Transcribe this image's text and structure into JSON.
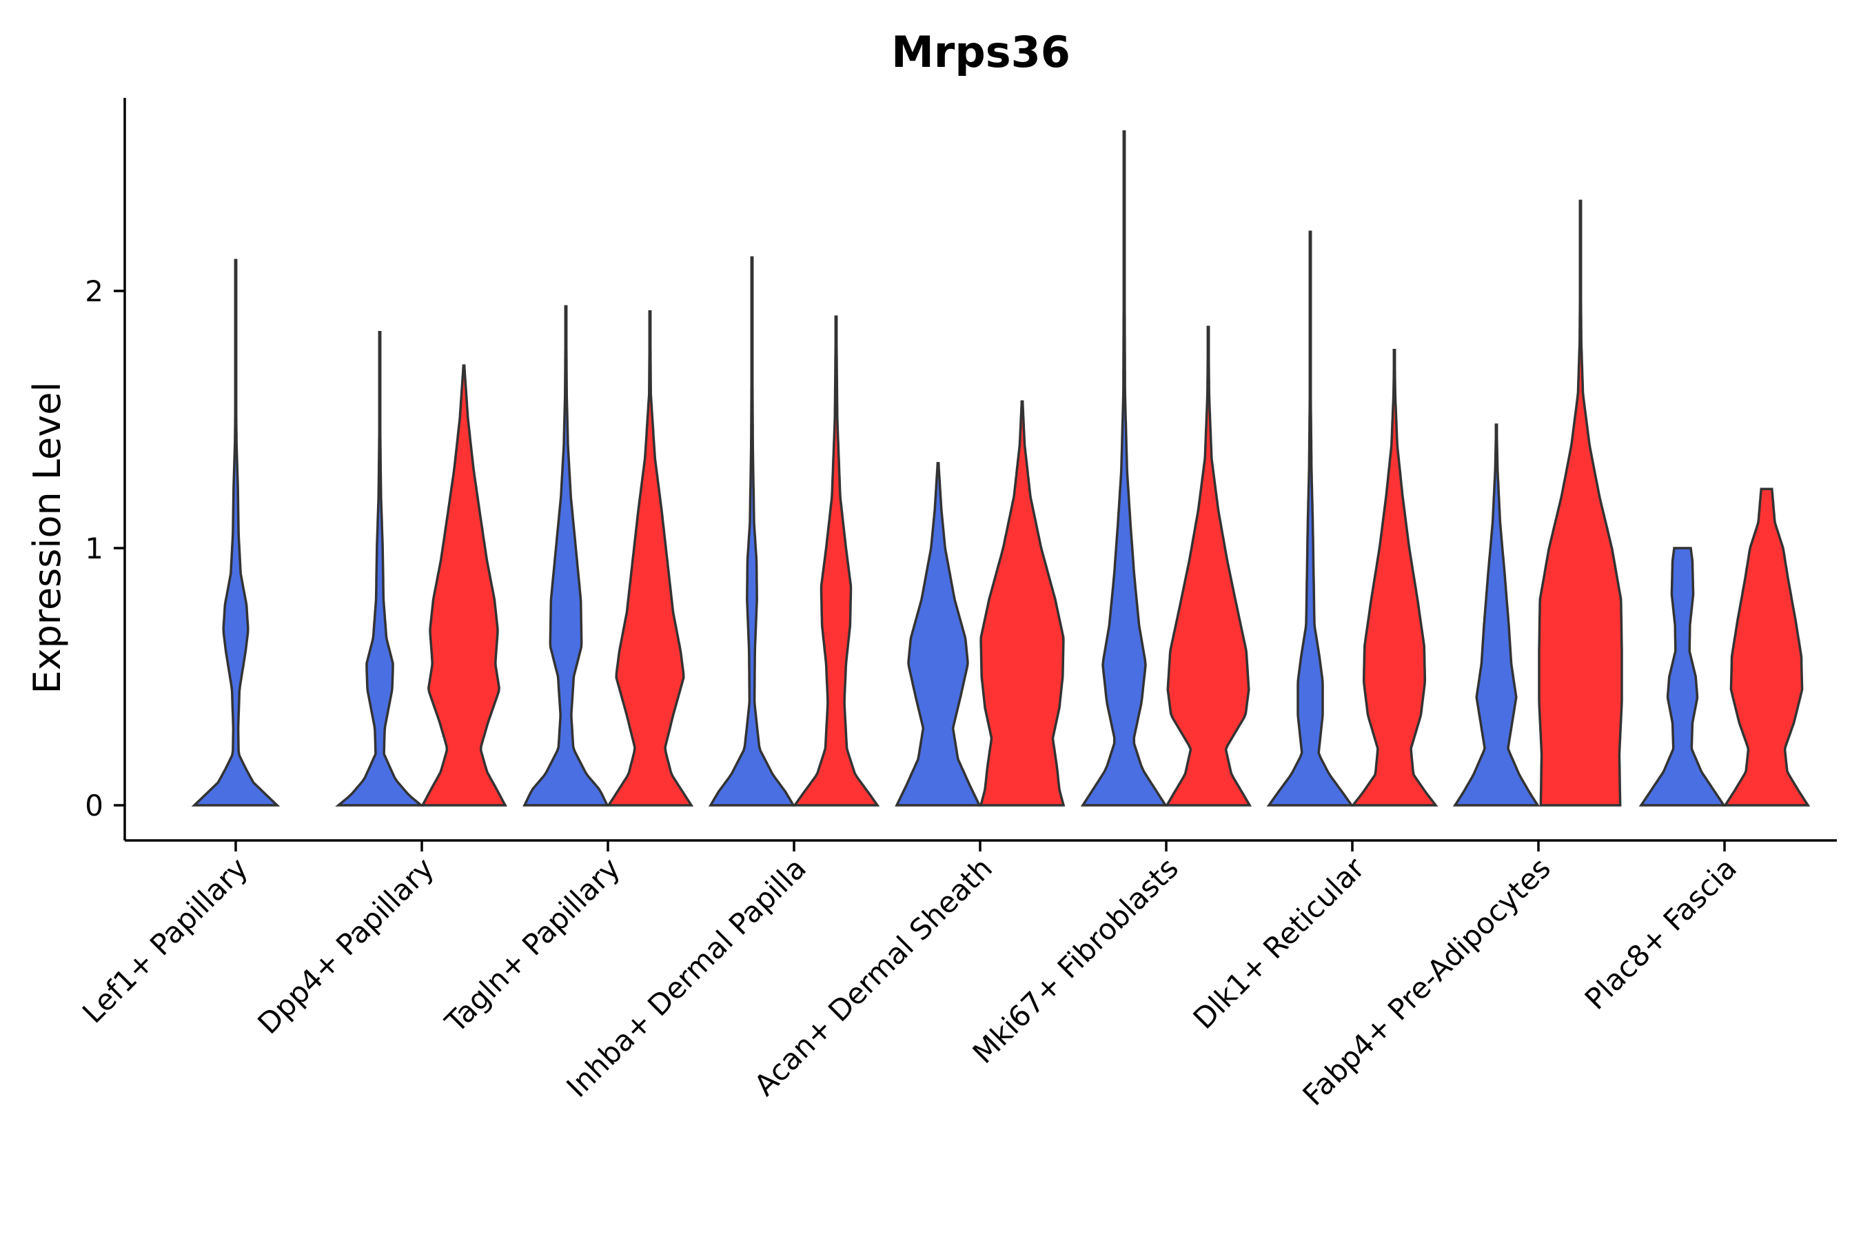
{
  "chart_data": {
    "type": "violin",
    "title": "Mrps36",
    "ylabel": "Expression Level",
    "xlabel": "",
    "ylim": [
      -0.13,
      2.75
    ],
    "yticks": [
      0,
      1,
      2
    ],
    "legend": "none",
    "colors": {
      "group_a": "#4A6FE3",
      "group_b": "#FF3333"
    },
    "categories": [
      "Lef1+ Papillary",
      "Dpp4+ Papillary",
      "Tagln+ Papillary",
      "Inhba+ Dermal Papilla",
      "Acan+ Dermal Sheath",
      "Mki67+ Fibroblasts",
      "Dlk1+ Reticular",
      "Fabp4+ Pre-Adipocytes",
      "Plac8+ Fascia"
    ],
    "series": [
      {
        "name": "group_a",
        "color": "#4A6FE3",
        "violins": [
          {
            "max": 2.12,
            "profile": [
              [
                0,
                1.0
              ],
              [
                0.04,
                0.74
              ],
              [
                0.09,
                0.42
              ],
              [
                0.15,
                0.22
              ],
              [
                0.2,
                0.07
              ],
              [
                0.3,
                0.06
              ],
              [
                0.45,
                0.09
              ],
              [
                0.6,
                0.24
              ],
              [
                0.68,
                0.3
              ],
              [
                0.78,
                0.26
              ],
              [
                0.9,
                0.12
              ],
              [
                1.05,
                0.07
              ],
              [
                1.25,
                0.05
              ],
              [
                1.4,
                0.02
              ],
              [
                1.6,
                0.006
              ],
              [
                2.12,
                0.004
              ]
            ]
          },
          {
            "max": 1.84,
            "profile": [
              [
                0,
                1.0
              ],
              [
                0.04,
                0.7
              ],
              [
                0.1,
                0.38
              ],
              [
                0.2,
                0.1
              ],
              [
                0.3,
                0.12
              ],
              [
                0.45,
                0.3
              ],
              [
                0.55,
                0.32
              ],
              [
                0.65,
                0.16
              ],
              [
                0.8,
                0.09
              ],
              [
                1.0,
                0.07
              ],
              [
                1.2,
                0.03
              ],
              [
                1.5,
                0.008
              ],
              [
                1.84,
                0.005
              ]
            ]
          },
          {
            "max": 1.94,
            "profile": [
              [
                0,
                1.0
              ],
              [
                0.06,
                0.82
              ],
              [
                0.12,
                0.5
              ],
              [
                0.22,
                0.18
              ],
              [
                0.35,
                0.13
              ],
              [
                0.5,
                0.19
              ],
              [
                0.62,
                0.38
              ],
              [
                0.8,
                0.36
              ],
              [
                1.0,
                0.24
              ],
              [
                1.2,
                0.12
              ],
              [
                1.4,
                0.05
              ],
              [
                1.6,
                0.02
              ],
              [
                1.94,
                0.005
              ]
            ]
          },
          {
            "max": 2.13,
            "profile": [
              [
                0,
                1.0
              ],
              [
                0.05,
                0.82
              ],
              [
                0.12,
                0.5
              ],
              [
                0.22,
                0.18
              ],
              [
                0.4,
                0.06
              ],
              [
                0.6,
                0.07
              ],
              [
                0.8,
                0.12
              ],
              [
                0.95,
                0.11
              ],
              [
                1.1,
                0.05
              ],
              [
                1.4,
                0.02
              ],
              [
                1.7,
                0.01
              ],
              [
                2.13,
                0.004
              ]
            ]
          },
          {
            "max": 1.33,
            "profile": [
              [
                0,
                1.0
              ],
              [
                0.08,
                0.76
              ],
              [
                0.18,
                0.48
              ],
              [
                0.3,
                0.36
              ],
              [
                0.42,
                0.54
              ],
              [
                0.55,
                0.72
              ],
              [
                0.65,
                0.66
              ],
              [
                0.8,
                0.4
              ],
              [
                1.0,
                0.17
              ],
              [
                1.15,
                0.08
              ],
              [
                1.33,
                0.01
              ]
            ]
          },
          {
            "max": 2.62,
            "profile": [
              [
                0,
                1.0
              ],
              [
                0.06,
                0.76
              ],
              [
                0.14,
                0.44
              ],
              [
                0.25,
                0.22
              ],
              [
                0.4,
                0.42
              ],
              [
                0.55,
                0.52
              ],
              [
                0.7,
                0.36
              ],
              [
                0.9,
                0.24
              ],
              [
                1.1,
                0.15
              ],
              [
                1.3,
                0.07
              ],
              [
                1.6,
                0.02
              ],
              [
                2.0,
                0.01
              ],
              [
                2.62,
                0.004
              ]
            ]
          },
          {
            "max": 2.23,
            "profile": [
              [
                0,
                1.0
              ],
              [
                0.05,
                0.78
              ],
              [
                0.12,
                0.46
              ],
              [
                0.2,
                0.2
              ],
              [
                0.35,
                0.3
              ],
              [
                0.48,
                0.3
              ],
              [
                0.58,
                0.22
              ],
              [
                0.7,
                0.1
              ],
              [
                0.9,
                0.08
              ],
              [
                1.1,
                0.06
              ],
              [
                1.3,
                0.03
              ],
              [
                1.6,
                0.01
              ],
              [
                2.23,
                0.004
              ]
            ]
          },
          {
            "max": 1.48,
            "profile": [
              [
                0,
                1.0
              ],
              [
                0.05,
                0.8
              ],
              [
                0.12,
                0.55
              ],
              [
                0.22,
                0.28
              ],
              [
                0.32,
                0.38
              ],
              [
                0.42,
                0.48
              ],
              [
                0.55,
                0.36
              ],
              [
                0.7,
                0.3
              ],
              [
                0.9,
                0.2
              ],
              [
                1.1,
                0.09
              ],
              [
                1.3,
                0.03
              ],
              [
                1.48,
                0.005
              ]
            ]
          },
          {
            "max": 1.0,
            "profile": [
              [
                0,
                1.0
              ],
              [
                0.06,
                0.75
              ],
              [
                0.13,
                0.46
              ],
              [
                0.22,
                0.22
              ],
              [
                0.32,
                0.24
              ],
              [
                0.42,
                0.36
              ],
              [
                0.5,
                0.32
              ],
              [
                0.6,
                0.17
              ],
              [
                0.7,
                0.18
              ],
              [
                0.82,
                0.26
              ],
              [
                0.95,
                0.24
              ],
              [
                1.0,
                0.2
              ]
            ]
          }
        ]
      },
      {
        "name": "group_b",
        "color": "#FF3333",
        "violins": [
          null,
          {
            "max": 1.71,
            "profile": [
              [
                0,
                1.0
              ],
              [
                0.06,
                0.8
              ],
              [
                0.13,
                0.56
              ],
              [
                0.22,
                0.4
              ],
              [
                0.32,
                0.58
              ],
              [
                0.45,
                0.86
              ],
              [
                0.55,
                0.76
              ],
              [
                0.68,
                0.82
              ],
              [
                0.8,
                0.74
              ],
              [
                0.95,
                0.56
              ],
              [
                1.1,
                0.42
              ],
              [
                1.3,
                0.24
              ],
              [
                1.5,
                0.1
              ],
              [
                1.71,
                0.01
              ]
            ]
          },
          {
            "max": 1.92,
            "profile": [
              [
                0,
                1.0
              ],
              [
                0.05,
                0.8
              ],
              [
                0.12,
                0.52
              ],
              [
                0.22,
                0.36
              ],
              [
                0.35,
                0.56
              ],
              [
                0.5,
                0.82
              ],
              [
                0.6,
                0.74
              ],
              [
                0.75,
                0.56
              ],
              [
                0.95,
                0.42
              ],
              [
                1.15,
                0.28
              ],
              [
                1.35,
                0.12
              ],
              [
                1.6,
                0.02
              ],
              [
                1.92,
                0.005
              ]
            ]
          },
          {
            "max": 1.9,
            "profile": [
              [
                0,
                1.0
              ],
              [
                0.05,
                0.78
              ],
              [
                0.12,
                0.46
              ],
              [
                0.22,
                0.26
              ],
              [
                0.4,
                0.2
              ],
              [
                0.55,
                0.24
              ],
              [
                0.7,
                0.34
              ],
              [
                0.85,
                0.36
              ],
              [
                1.0,
                0.24
              ],
              [
                1.2,
                0.1
              ],
              [
                1.5,
                0.03
              ],
              [
                1.9,
                0.005
              ]
            ]
          },
          {
            "max": 1.57,
            "profile": [
              [
                0,
                1.0
              ],
              [
                0.06,
                0.9
              ],
              [
                0.15,
                0.84
              ],
              [
                0.26,
                0.74
              ],
              [
                0.38,
                0.9
              ],
              [
                0.5,
                0.98
              ],
              [
                0.65,
                1.0
              ],
              [
                0.8,
                0.8
              ],
              [
                1.0,
                0.46
              ],
              [
                1.2,
                0.2
              ],
              [
                1.4,
                0.06
              ],
              [
                1.57,
                0.01
              ]
            ]
          },
          {
            "max": 1.86,
            "profile": [
              [
                0,
                1.0
              ],
              [
                0.05,
                0.82
              ],
              [
                0.12,
                0.56
              ],
              [
                0.22,
                0.42
              ],
              [
                0.35,
                0.9
              ],
              [
                0.45,
                0.98
              ],
              [
                0.6,
                0.92
              ],
              [
                0.75,
                0.72
              ],
              [
                0.95,
                0.46
              ],
              [
                1.15,
                0.24
              ],
              [
                1.35,
                0.08
              ],
              [
                1.6,
                0.02
              ],
              [
                1.86,
                0.005
              ]
            ]
          },
          {
            "max": 1.77,
            "profile": [
              [
                0,
                1.0
              ],
              [
                0.05,
                0.76
              ],
              [
                0.12,
                0.46
              ],
              [
                0.22,
                0.4
              ],
              [
                0.35,
                0.64
              ],
              [
                0.48,
                0.74
              ],
              [
                0.62,
                0.72
              ],
              [
                0.8,
                0.56
              ],
              [
                1.0,
                0.36
              ],
              [
                1.2,
                0.2
              ],
              [
                1.4,
                0.07
              ],
              [
                1.6,
                0.02
              ],
              [
                1.77,
                0.005
              ]
            ]
          },
          {
            "max": 2.35,
            "profile": [
              [
                0,
                0.96
              ],
              [
                0.2,
                0.94
              ],
              [
                0.4,
                1.0
              ],
              [
                0.6,
                1.0
              ],
              [
                0.8,
                0.98
              ],
              [
                1.0,
                0.76
              ],
              [
                1.2,
                0.46
              ],
              [
                1.4,
                0.22
              ],
              [
                1.6,
                0.06
              ],
              [
                1.8,
                0.02
              ],
              [
                2.0,
                0.01
              ],
              [
                2.35,
                0.005
              ]
            ]
          },
          {
            "max": 1.23,
            "profile": [
              [
                0,
                1.0
              ],
              [
                0.06,
                0.76
              ],
              [
                0.13,
                0.5
              ],
              [
                0.22,
                0.44
              ],
              [
                0.32,
                0.66
              ],
              [
                0.45,
                0.86
              ],
              [
                0.58,
                0.84
              ],
              [
                0.72,
                0.7
              ],
              [
                0.88,
                0.52
              ],
              [
                1.0,
                0.4
              ],
              [
                1.1,
                0.2
              ],
              [
                1.23,
                0.13
              ]
            ]
          }
        ]
      }
    ]
  }
}
